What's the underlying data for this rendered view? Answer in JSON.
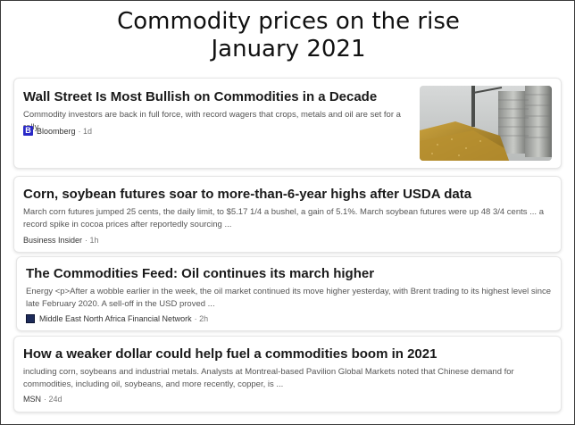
{
  "header": {
    "line1": "Commodity prices on the rise",
    "line2": "January 2021"
  },
  "articles": [
    {
      "title": "Wall Street Is Most Bullish on Commodities in a Decade",
      "snippet": "Commodity investors are back in full force, with record wagers that crops, metals and oil are set for a rally.",
      "source": "Bloomberg",
      "time": "· 1d",
      "logo_letter": "B",
      "logo_color": "#2a29c7"
    },
    {
      "title": "Corn, soybean futures soar to more-than-6-year highs after USDA data",
      "snippet": "March corn futures jumped 25 cents, the daily limit, to $5.17 1/4 a bushel, a gain of 5.1%. March soybean futures were up 48 3/4 cents ... a record spike in cocoa prices after reportedly sourcing ...",
      "source": "Business Insider",
      "time": "· 1h"
    },
    {
      "title": "The Commodities Feed: Oil continues its march higher",
      "snippet": "Energy <p>After a wobble earlier in the week, the oil market continued its move higher yesterday, with Brent trading to its highest level since late February 2020. A sell-off in the USD proved ...",
      "source": "Middle East North Africa Financial Network",
      "time": "· 2h",
      "logo_color": "#1d2b5a"
    },
    {
      "title": "How a weaker dollar could help fuel a commodities boom in 2021",
      "snippet": "including corn, soybeans and industrial metals. Analysts at Montreal-based Pavilion Global Markets noted that Chinese demand for commodities, including oil, soybeans, and more recently, copper, is ...",
      "source": "MSN",
      "time": "· 24d"
    }
  ]
}
